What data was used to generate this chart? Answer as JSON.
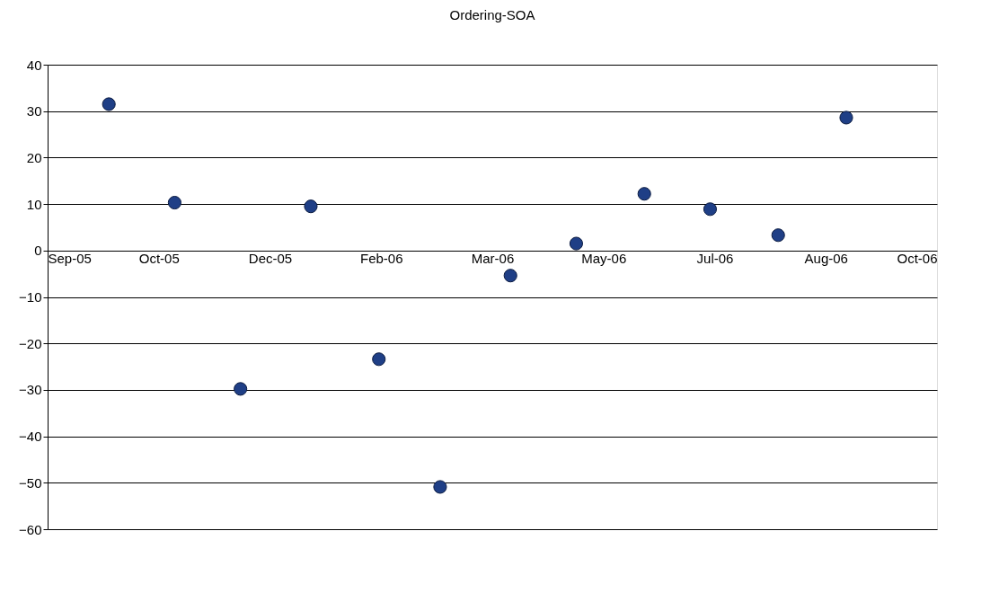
{
  "chart_data": {
    "type": "scatter",
    "title": "Ordering-SOA",
    "x": [
      "2005-10-07",
      "2005-11-05",
      "2005-12-04",
      "2006-01-04",
      "2006-02-03",
      "2006-03-02",
      "2006-04-02",
      "2006-05-01",
      "2006-05-31",
      "2006-06-29",
      "2006-07-29",
      "2006-08-28"
    ],
    "series": [
      {
        "color": "#1f3f86",
        "values": [
          31.5,
          10.3,
          -29.8,
          9.5,
          -23.4,
          -50.9,
          -5.4,
          1.5,
          12.2,
          8.9,
          3.3,
          28.6
        ]
      }
    ],
    "xlim": [
      "2005-09-10",
      "2006-10-07"
    ],
    "xticks": [
      {
        "value": "2005-09-10",
        "label": "Sep-05"
      },
      {
        "value": "2005-10-29",
        "label": "Oct-05"
      },
      {
        "value": "2005-12-17",
        "label": "Dec-05"
      },
      {
        "value": "2006-02-04",
        "label": "Feb-06"
      },
      {
        "value": "2006-03-25",
        "label": "Mar-06"
      },
      {
        "value": "2006-05-13",
        "label": "May-06"
      },
      {
        "value": "2006-07-01",
        "label": "Jul-06"
      },
      {
        "value": "2006-08-19",
        "label": "Aug-06"
      },
      {
        "value": "2006-10-07",
        "label": "Oct-06"
      }
    ],
    "ylim": [
      -60,
      40
    ],
    "yticks": [
      -60,
      -50,
      -40,
      -30,
      -20,
      -10,
      0,
      10,
      20,
      30,
      40
    ],
    "grid": "y",
    "legend": false,
    "marker": "circle"
  }
}
